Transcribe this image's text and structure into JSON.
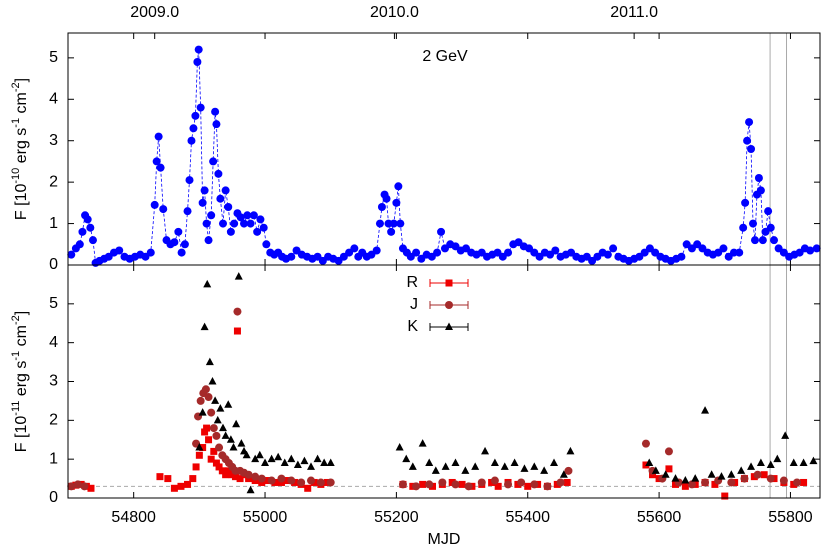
{
  "chart_data": [
    {
      "type": "scatter",
      "annotation": "2 GeV",
      "ylabel_parts": [
        "F [10",
        "-10",
        " erg s",
        "-1",
        " cm",
        "-2",
        "]"
      ],
      "color": "#0000ff",
      "connect": true,
      "xlim": [
        54700,
        55845
      ],
      "xticks": [
        54800,
        55000,
        55200,
        55400,
        55600,
        55800
      ],
      "top_xticks": [
        {
          "value": 54832,
          "label": "2009.0"
        },
        {
          "value": 55197,
          "label": "2010.0"
        },
        {
          "value": 55562,
          "label": "2011.0"
        }
      ],
      "ylim": [
        0,
        5.6
      ],
      "yticks": [
        0,
        1,
        2,
        3,
        4,
        5
      ],
      "vlines": [
        55769,
        55794
      ],
      "x": [
        54705,
        54712,
        54718,
        54722,
        54726,
        54730,
        54734,
        54738,
        54742,
        54748,
        54755,
        54762,
        54770,
        54778,
        54786,
        54794,
        54802,
        54810,
        54818,
        54826,
        54832,
        54835,
        54838,
        54841,
        54845,
        54850,
        54856,
        54862,
        54868,
        54873,
        54878,
        54882,
        54885,
        54888,
        54891,
        54894,
        54897,
        54899,
        54902,
        54905,
        54908,
        54911,
        54914,
        54918,
        54921,
        54924,
        54926,
        54929,
        54932,
        54936,
        54940,
        54944,
        54948,
        54953,
        54958,
        54963,
        54968,
        54973,
        54978,
        54983,
        54988,
        54993,
        54998,
        55002,
        55008,
        55014,
        55020,
        55026,
        55032,
        55040,
        55048,
        55056,
        55064,
        55072,
        55080,
        55088,
        55096,
        55104,
        55112,
        55120,
        55128,
        55136,
        55142,
        55148,
        55155,
        55162,
        55170,
        55175,
        55178,
        55182,
        55185,
        55188,
        55192,
        55196,
        55200,
        55203,
        55206,
        55210,
        55216,
        55222,
        55230,
        55238,
        55246,
        55254,
        55262,
        55268,
        55274,
        55282,
        55290,
        55298,
        55306,
        55314,
        55322,
        55330,
        55338,
        55346,
        55354,
        55362,
        55370,
        55378,
        55386,
        55394,
        55402,
        55410,
        55418,
        55426,
        55434,
        55442,
        55450,
        55458,
        55466,
        55474,
        55482,
        55490,
        55498,
        55506,
        55514,
        55522,
        55530,
        55538,
        55546,
        55554,
        55562,
        55570,
        55578,
        55586,
        55594,
        55602,
        55610,
        55618,
        55626,
        55634,
        55642,
        55650,
        55658,
        55666,
        55674,
        55682,
        55690,
        55698,
        55706,
        55714,
        55722,
        55728,
        55731,
        55734,
        55737,
        55740,
        55743,
        55746,
        55749,
        55752,
        55755,
        55758,
        55762,
        55766,
        55770,
        55775,
        55782,
        55790,
        55798,
        55806,
        55814,
        55822,
        55830,
        55840
      ],
      "values": [
        0.25,
        0.4,
        0.5,
        0.8,
        1.2,
        1.1,
        0.9,
        0.6,
        0.05,
        0.1,
        0.15,
        0.2,
        0.3,
        0.35,
        0.2,
        0.15,
        0.2,
        0.25,
        0.2,
        0.3,
        1.45,
        2.5,
        3.1,
        2.35,
        1.35,
        0.6,
        0.5,
        0.55,
        0.8,
        0.3,
        0.5,
        1.3,
        2.05,
        3.0,
        3.3,
        3.6,
        4.9,
        5.2,
        3.8,
        1.5,
        1.8,
        1.0,
        0.6,
        1.2,
        2.5,
        3.7,
        3.4,
        2.2,
        1.6,
        1.0,
        1.8,
        1.4,
        0.8,
        1.0,
        1.25,
        1.15,
        1.0,
        1.2,
        1.0,
        1.2,
        0.8,
        1.1,
        0.9,
        0.5,
        0.3,
        0.25,
        0.3,
        0.2,
        0.15,
        0.2,
        0.35,
        0.25,
        0.2,
        0.15,
        0.2,
        0.1,
        0.2,
        0.15,
        0.1,
        0.2,
        0.3,
        0.4,
        0.2,
        0.3,
        0.2,
        0.25,
        0.35,
        1.0,
        1.4,
        1.7,
        1.6,
        1.0,
        0.8,
        1.0,
        1.5,
        1.9,
        1.0,
        0.4,
        0.3,
        0.2,
        0.3,
        0.15,
        0.25,
        0.2,
        0.3,
        0.8,
        0.4,
        0.5,
        0.45,
        0.35,
        0.4,
        0.3,
        0.25,
        0.3,
        0.2,
        0.25,
        0.3,
        0.2,
        0.3,
        0.5,
        0.55,
        0.45,
        0.4,
        0.3,
        0.2,
        0.3,
        0.25,
        0.35,
        0.2,
        0.25,
        0.3,
        0.2,
        0.15,
        0.2,
        0.1,
        0.2,
        0.3,
        0.25,
        0.4,
        0.2,
        0.15,
        0.1,
        0.15,
        0.2,
        0.3,
        0.4,
        0.3,
        0.2,
        0.15,
        0.1,
        0.15,
        0.2,
        0.5,
        0.4,
        0.5,
        0.4,
        0.3,
        0.25,
        0.3,
        0.4,
        0.2,
        0.3,
        0.3,
        0.9,
        1.5,
        3.0,
        3.45,
        2.8,
        1.0,
        0.6,
        1.7,
        2.1,
        1.8,
        0.6,
        0.8,
        1.3,
        0.9,
        0.6,
        0.4,
        0.3,
        0.2,
        0.25,
        0.3,
        0.4,
        0.35,
        0.4
      ]
    },
    {
      "type": "scatter",
      "xlabel": "MJD",
      "ylabel_parts": [
        "F [10",
        "-11",
        " erg s",
        "-1",
        " cm",
        "-2",
        "]"
      ],
      "xlim": [
        54700,
        55845
      ],
      "xticks": [
        54800,
        55000,
        55200,
        55400,
        55600,
        55800
      ],
      "ylim": [
        0,
        6
      ],
      "yticks": [
        0,
        1,
        2,
        3,
        4,
        5
      ],
      "vlines": [
        55769,
        55794
      ],
      "baseline": 0.3,
      "series": [
        {
          "name": "R",
          "color": "#ee0000",
          "marker": "square",
          "x": [
            54705,
            54712,
            54720,
            54728,
            54735,
            54840,
            54852,
            54862,
            54872,
            54882,
            54890,
            54895,
            54900,
            54905,
            54908,
            54911,
            54914,
            54918,
            54922,
            54926,
            54930,
            54935,
            54940,
            54945,
            54950,
            54955,
            54958,
            54962,
            54968,
            54975,
            54985,
            54995,
            55005,
            55015,
            55025,
            55035,
            55045,
            55055,
            55065,
            55075,
            55085,
            55095,
            55210,
            55225,
            55240,
            55255,
            55270,
            55285,
            55300,
            55315,
            55330,
            55345,
            55355,
            55370,
            55385,
            55400,
            55415,
            55430,
            55445,
            55460,
            55580,
            55590,
            55600,
            55615,
            55625,
            55640,
            55655,
            55670,
            55685,
            55700,
            55715,
            55730,
            55745,
            55760,
            55775,
            55790,
            55805,
            55820
          ],
          "values": [
            0.3,
            0.33,
            0.35,
            0.3,
            0.25,
            0.55,
            0.5,
            0.25,
            0.3,
            0.35,
            0.5,
            0.8,
            1.1,
            1.3,
            1.7,
            1.8,
            1.5,
            1.0,
            1.2,
            0.9,
            0.8,
            0.7,
            0.6,
            0.7,
            0.6,
            0.55,
            4.3,
            0.5,
            0.6,
            0.5,
            0.45,
            0.4,
            0.45,
            0.4,
            0.4,
            0.45,
            0.4,
            0.35,
            0.25,
            0.4,
            0.35,
            0.4,
            0.35,
            0.3,
            0.35,
            0.3,
            0.35,
            0.4,
            0.35,
            0.3,
            0.35,
            0.4,
            0.3,
            0.4,
            0.35,
            0.3,
            0.35,
            0.3,
            0.35,
            0.4,
            0.85,
            0.6,
            0.5,
            0.75,
            0.35,
            0.3,
            0.35,
            0.4,
            0.35,
            0.05,
            0.4,
            0.5,
            0.55,
            0.6,
            0.5,
            0.4,
            0.35,
            0.4
          ]
        },
        {
          "name": "J",
          "color": "#a52a2a",
          "marker": "circle",
          "x": [
            54705,
            54715,
            54725,
            54895,
            54898,
            54902,
            54906,
            54910,
            54914,
            54918,
            54922,
            54926,
            54930,
            54935,
            54940,
            54945,
            54950,
            54955,
            54958,
            54962,
            54968,
            54975,
            54985,
            54995,
            55010,
            55025,
            55040,
            55055,
            55070,
            55085,
            55100,
            55210,
            55230,
            55250,
            55270,
            55290,
            55310,
            55330,
            55350,
            55370,
            55390,
            55410,
            55430,
            55450,
            55462,
            55580,
            55590,
            55605,
            55615,
            55630,
            55650,
            55670,
            55690,
            55710,
            55730,
            55750,
            55770,
            55790,
            55810
          ],
          "values": [
            0.3,
            0.35,
            0.3,
            1.4,
            2.1,
            2.5,
            2.7,
            2.8,
            2.6,
            2.2,
            1.8,
            1.6,
            1.3,
            1.1,
            1.0,
            0.9,
            0.8,
            0.7,
            4.8,
            0.7,
            0.65,
            0.6,
            0.55,
            0.5,
            0.45,
            0.5,
            0.45,
            0.4,
            0.45,
            0.4,
            0.4,
            0.35,
            0.3,
            0.35,
            0.4,
            0.35,
            0.3,
            0.4,
            0.45,
            0.35,
            0.4,
            0.35,
            0.3,
            0.4,
            0.7,
            1.4,
            0.7,
            0.5,
            1.2,
            0.4,
            0.35,
            0.4,
            0.45,
            0.4,
            0.5,
            0.6,
            0.5,
            0.45,
            0.4
          ]
        },
        {
          "name": "K",
          "color": "#000000",
          "marker": "triangle",
          "x": [
            54900,
            54905,
            54908,
            54912,
            54916,
            54920,
            54924,
            54928,
            54932,
            54936,
            54940,
            54944,
            54948,
            54952,
            54956,
            54960,
            54964,
            54968,
            54972,
            54978,
            54985,
            54992,
            55000,
            55010,
            55020,
            55030,
            55040,
            55050,
            55060,
            55070,
            55080,
            55090,
            55100,
            55205,
            55215,
            55225,
            55240,
            55250,
            55260,
            55275,
            55290,
            55305,
            55320,
            55335,
            55350,
            55365,
            55380,
            55395,
            55410,
            55425,
            55440,
            55455,
            55465,
            55585,
            55595,
            55610,
            55625,
            55640,
            55655,
            55670,
            55680,
            55695,
            55710,
            55725,
            55740,
            55755,
            55770,
            55780,
            55792,
            55805,
            55820,
            55835
          ],
          "values": [
            1.3,
            2.2,
            4.4,
            5.5,
            3.5,
            3.0,
            2.5,
            2.0,
            2.3,
            1.8,
            1.6,
            2.4,
            1.5,
            1.3,
            1.9,
            5.7,
            1.4,
            1.2,
            1.1,
            0.2,
            1.0,
            1.1,
            0.9,
            1.0,
            1.05,
            0.9,
            1.0,
            0.85,
            0.95,
            0.8,
            1.0,
            0.9,
            0.9,
            1.3,
            1.0,
            0.8,
            1.4,
            0.9,
            0.7,
            0.8,
            0.9,
            0.7,
            0.8,
            1.2,
            0.9,
            0.8,
            0.9,
            0.75,
            0.8,
            0.7,
            0.9,
            0.6,
            1.2,
            0.9,
            0.7,
            0.6,
            0.5,
            0.45,
            0.5,
            2.25,
            0.6,
            0.55,
            0.6,
            0.7,
            0.8,
            0.9,
            0.85,
            1.0,
            1.6,
            0.9,
            0.9,
            0.95
          ]
        }
      ]
    }
  ]
}
